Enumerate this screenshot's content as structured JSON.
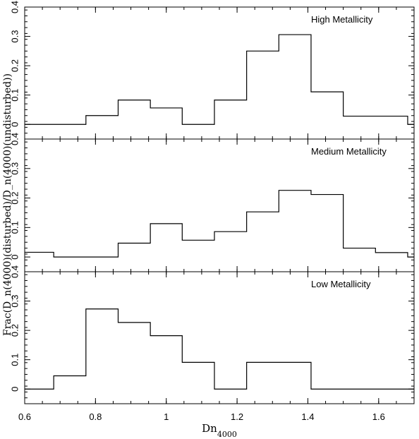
{
  "chart_data": {
    "type": "histogram",
    "layout": "3-panel vertical stack, shared x-axis",
    "xlabel_main": "Dn",
    "xlabel_sub": "4000",
    "ylabel": "Frac(D_n(4000)(disturbed)/D_n(4000)(undisturbed))",
    "xlim": [
      0.6,
      1.7
    ],
    "x_ticks": [
      0.6,
      0.8,
      1,
      1.2,
      1.4,
      1.6
    ],
    "x_tick_labels": [
      "0.6",
      "0.8",
      "1",
      "1.2",
      "1.4",
      "1.6"
    ],
    "y_ticks": [
      0,
      0.1,
      0.2,
      0.3,
      0.4
    ],
    "y_tick_labels": [
      "0",
      "0.1",
      "0.2",
      "0.3",
      "0.4"
    ],
    "bin_edges": [
      0.6,
      0.682,
      0.773,
      0.864,
      0.955,
      1.045,
      1.136,
      1.227,
      1.318,
      1.409,
      1.5,
      1.591,
      1.682,
      1.7
    ],
    "colors": {
      "line": "#000000",
      "background": "#ffffff"
    },
    "panels": [
      {
        "title": "High Metallicity",
        "ylim": [
          -0.05,
          0.4
        ],
        "values": [
          0.0,
          0.0,
          0.03,
          0.083,
          0.056,
          0.0,
          0.083,
          0.25,
          0.306,
          0.111,
          0.028,
          0.028,
          0.0
        ]
      },
      {
        "title": "Medium Metallicity",
        "ylim": [
          -0.05,
          0.4
        ],
        "values": [
          0.016,
          0.0,
          0.0,
          0.047,
          0.113,
          0.057,
          0.086,
          0.153,
          0.226,
          0.212,
          0.03,
          0.015,
          0.0
        ]
      },
      {
        "title": "Low Metallicity",
        "ylim": [
          -0.05,
          0.4
        ],
        "values": [
          0.0,
          0.045,
          0.273,
          0.227,
          0.182,
          0.091,
          0.0,
          0.091,
          0.091,
          0.0,
          0.0,
          0.0,
          0.0
        ]
      }
    ]
  }
}
